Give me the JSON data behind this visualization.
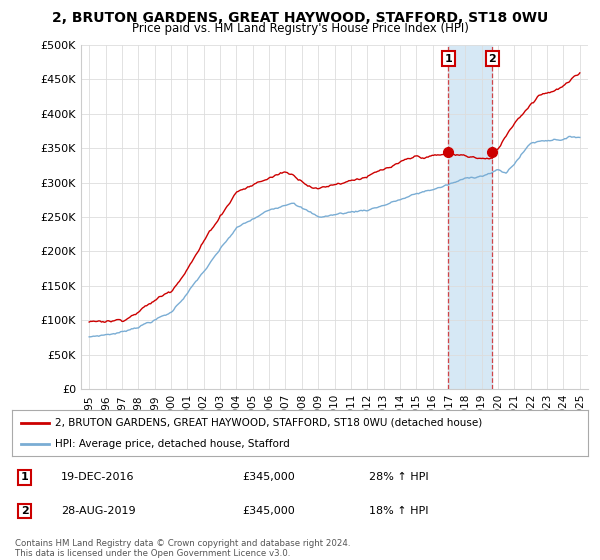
{
  "title": "2, BRUTON GARDENS, GREAT HAYWOOD, STAFFORD, ST18 0WU",
  "subtitle": "Price paid vs. HM Land Registry's House Price Index (HPI)",
  "ylim": [
    0,
    500000
  ],
  "yticks": [
    0,
    50000,
    100000,
    150000,
    200000,
    250000,
    300000,
    350000,
    400000,
    450000,
    500000
  ],
  "ytick_labels": [
    "£0",
    "£50K",
    "£100K",
    "£150K",
    "£200K",
    "£250K",
    "£300K",
    "£350K",
    "£400K",
    "£450K",
    "£500K"
  ],
  "sale1_date": 2016.96,
  "sale1_price": 345000,
  "sale2_date": 2019.65,
  "sale2_price": 345000,
  "property_color": "#cc0000",
  "hpi_color": "#7aadd4",
  "hpi_shade_color": "#d6e8f5",
  "legend_property": "2, BRUTON GARDENS, GREAT HAYWOOD, STAFFORD, ST18 0WU (detached house)",
  "legend_hpi": "HPI: Average price, detached house, Stafford",
  "table_row1": [
    "1",
    "19-DEC-2016",
    "£345,000",
    "28% ↑ HPI"
  ],
  "table_row2": [
    "2",
    "28-AUG-2019",
    "£345,000",
    "18% ↑ HPI"
  ],
  "copyright": "Contains HM Land Registry data © Crown copyright and database right 2024.\nThis data is licensed under the Open Government Licence v3.0.",
  "background_color": "#ffffff",
  "grid_color": "#dddddd",
  "xlim_start": 1994.5,
  "xlim_end": 2025.5,
  "xticks": [
    1995,
    1996,
    1997,
    1998,
    1999,
    2000,
    2001,
    2002,
    2003,
    2004,
    2005,
    2006,
    2007,
    2008,
    2009,
    2010,
    2011,
    2012,
    2013,
    2014,
    2015,
    2016,
    2017,
    2018,
    2019,
    2020,
    2021,
    2022,
    2023,
    2024,
    2025
  ]
}
